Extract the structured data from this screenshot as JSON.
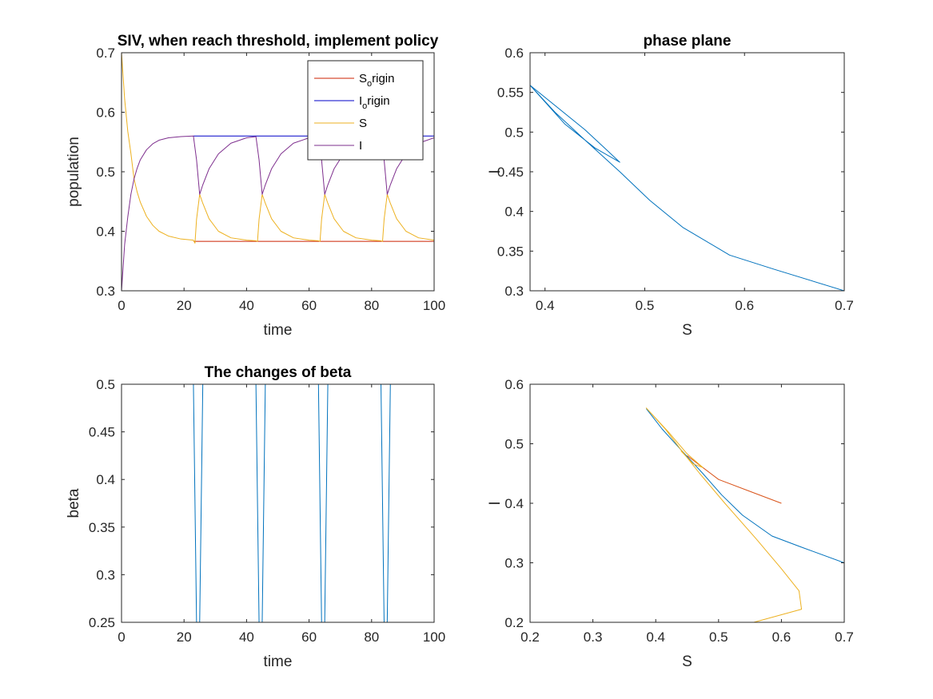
{
  "colors": {
    "red": "#d95319",
    "darkred": "#cc2200",
    "blue": "#0000c8",
    "orange": "#edb120",
    "purple": "#7e2f8e",
    "steel": "#0072bd"
  },
  "chart_data": [
    {
      "id": "siv",
      "type": "line",
      "title": "SIV, when reach threshold, implement policy",
      "xlabel": "time",
      "ylabel": "population",
      "xlim": [
        0,
        100
      ],
      "ylim": [
        0.3,
        0.7
      ],
      "xticks": [
        0,
        20,
        40,
        60,
        80,
        100
      ],
      "yticks": [
        0.3,
        0.4,
        0.5,
        0.6,
        0.7
      ],
      "grid": false,
      "legend": "top-right",
      "series": [
        {
          "key": "s_origin",
          "name": "S",
          "name_sub": "o",
          "name_rest": "rigin",
          "color": "#cc2200",
          "points": [
            [
              23,
              0.383
            ],
            [
              30,
              0.383
            ],
            [
              50,
              0.383
            ],
            [
              70,
              0.383
            ],
            [
              90,
              0.383
            ],
            [
              100,
              0.383
            ]
          ]
        },
        {
          "key": "i_origin",
          "name": "I",
          "name_sub": "o",
          "name_rest": "rigin",
          "color": "#0000c8",
          "points": [
            [
              23,
              0.56
            ],
            [
              100,
              0.56
            ]
          ]
        },
        {
          "key": "s",
          "name": "S",
          "name_sub": "",
          "name_rest": "",
          "color": "#edb120",
          "points": [
            [
              0,
              0.7
            ],
            [
              1,
              0.622
            ],
            [
              2,
              0.568
            ],
            [
              3,
              0.531
            ],
            [
              4,
              0.488
            ],
            [
              5,
              0.466
            ],
            [
              6,
              0.449
            ],
            [
              8,
              0.425
            ],
            [
              10,
              0.41
            ],
            [
              12,
              0.4
            ],
            [
              15,
              0.392
            ],
            [
              19,
              0.387
            ],
            [
              23,
              0.385
            ],
            [
              23.5,
              0.38
            ],
            [
              24,
              0.42
            ],
            [
              25,
              0.462
            ],
            [
              26,
              0.447
            ],
            [
              28,
              0.421
            ],
            [
              31,
              0.4
            ],
            [
              35,
              0.389
            ],
            [
              40,
              0.385
            ],
            [
              43,
              0.384
            ],
            [
              43.5,
              0.383
            ],
            [
              44,
              0.42
            ],
            [
              45,
              0.462
            ],
            [
              46,
              0.447
            ],
            [
              48,
              0.421
            ],
            [
              51,
              0.4
            ],
            [
              55,
              0.389
            ],
            [
              60,
              0.385
            ],
            [
              63,
              0.384
            ],
            [
              63.5,
              0.383
            ],
            [
              64,
              0.42
            ],
            [
              65,
              0.462
            ],
            [
              66,
              0.447
            ],
            [
              68,
              0.421
            ],
            [
              71,
              0.4
            ],
            [
              75,
              0.389
            ],
            [
              80,
              0.385
            ],
            [
              83,
              0.384
            ],
            [
              83.5,
              0.383
            ],
            [
              84,
              0.42
            ],
            [
              85,
              0.462
            ],
            [
              86,
              0.447
            ],
            [
              88,
              0.421
            ],
            [
              91,
              0.4
            ],
            [
              95,
              0.389
            ],
            [
              100,
              0.385
            ]
          ]
        },
        {
          "key": "i",
          "name": "I",
          "name_sub": "",
          "name_rest": "",
          "color": "#7e2f8e",
          "points": [
            [
              0,
              0.3
            ],
            [
              1,
              0.378
            ],
            [
              2,
              0.424
            ],
            [
              3,
              0.462
            ],
            [
              4,
              0.488
            ],
            [
              5,
              0.506
            ],
            [
              6,
              0.52
            ],
            [
              8,
              0.537
            ],
            [
              10,
              0.547
            ],
            [
              12,
              0.553
            ],
            [
              15,
              0.557
            ],
            [
              19,
              0.559
            ],
            [
              23,
              0.56
            ],
            [
              24,
              0.52
            ],
            [
              25,
              0.462
            ],
            [
              26,
              0.478
            ],
            [
              28,
              0.505
            ],
            [
              31,
              0.53
            ],
            [
              35,
              0.548
            ],
            [
              40,
              0.557
            ],
            [
              43,
              0.559
            ],
            [
              44,
              0.52
            ],
            [
              45,
              0.462
            ],
            [
              46,
              0.478
            ],
            [
              48,
              0.505
            ],
            [
              51,
              0.53
            ],
            [
              55,
              0.548
            ],
            [
              60,
              0.557
            ],
            [
              63,
              0.559
            ],
            [
              64,
              0.52
            ],
            [
              65,
              0.462
            ],
            [
              66,
              0.478
            ],
            [
              68,
              0.505
            ],
            [
              71,
              0.53
            ],
            [
              75,
              0.548
            ],
            [
              80,
              0.557
            ],
            [
              83,
              0.559
            ],
            [
              84,
              0.52
            ],
            [
              85,
              0.462
            ],
            [
              86,
              0.478
            ],
            [
              88,
              0.505
            ],
            [
              91,
              0.53
            ],
            [
              95,
              0.548
            ],
            [
              100,
              0.557
            ]
          ]
        }
      ]
    },
    {
      "id": "phase",
      "type": "line",
      "title": "phase plane",
      "xlabel": "S",
      "ylabel": "I",
      "xlim": [
        0.385,
        0.7
      ],
      "ylim": [
        0.3,
        0.6
      ],
      "xticks": [
        0.4,
        0.5,
        0.6,
        0.7
      ],
      "yticks": [
        0.3,
        0.35,
        0.4,
        0.45,
        0.5,
        0.55,
        0.6
      ],
      "grid": false,
      "series": [
        {
          "key": "traj",
          "color": "#0072bd",
          "points": [
            [
              0.7,
              0.3
            ],
            [
              0.63,
              0.327
            ],
            [
              0.585,
              0.345
            ],
            [
              0.538,
              0.38
            ],
            [
              0.505,
              0.414
            ],
            [
              0.475,
              0.45
            ],
            [
              0.44,
              0.49
            ],
            [
              0.41,
              0.525
            ],
            [
              0.385,
              0.559
            ],
            [
              0.44,
              0.503
            ],
            [
              0.475,
              0.462
            ],
            [
              0.45,
              0.48
            ],
            [
              0.42,
              0.51
            ],
            [
              0.385,
              0.559
            ]
          ]
        }
      ]
    },
    {
      "id": "beta",
      "type": "line",
      "title": "The changes of beta",
      "xlabel": "time",
      "ylabel": "beta",
      "xlim": [
        0,
        100
      ],
      "ylim": [
        0.25,
        0.5
      ],
      "xticks": [
        0,
        20,
        40,
        60,
        80,
        100
      ],
      "yticks": [
        0.25,
        0.3,
        0.35,
        0.4,
        0.45,
        0.5
      ],
      "grid": false,
      "series": [
        {
          "key": "beta",
          "color": "#0072bd",
          "points": [
            [
              0,
              0.5
            ],
            [
              23,
              0.5
            ],
            [
              24,
              0.25
            ],
            [
              25,
              0.25
            ],
            [
              26,
              0.5
            ],
            [
              43,
              0.5
            ],
            [
              44,
              0.25
            ],
            [
              45,
              0.25
            ],
            [
              46,
              0.5
            ],
            [
              63,
              0.5
            ],
            [
              64,
              0.25
            ],
            [
              65,
              0.25
            ],
            [
              66,
              0.5
            ],
            [
              83,
              0.5
            ],
            [
              84,
              0.25
            ],
            [
              85,
              0.25
            ],
            [
              86,
              0.5
            ],
            [
              100,
              0.5
            ]
          ]
        }
      ]
    },
    {
      "id": "phase2",
      "type": "line",
      "title": "",
      "xlabel": "S",
      "ylabel": "I",
      "xlim": [
        0.2,
        0.7
      ],
      "ylim": [
        0.2,
        0.6
      ],
      "xticks": [
        0.2,
        0.3,
        0.4,
        0.5,
        0.6,
        0.7
      ],
      "yticks": [
        0.2,
        0.3,
        0.4,
        0.5,
        0.6
      ],
      "grid": false,
      "series": [
        {
          "key": "red",
          "color": "#d95319",
          "points": [
            [
              0.6,
              0.4
            ],
            [
              0.55,
              0.42
            ],
            [
              0.5,
              0.44
            ],
            [
              0.475,
              0.46
            ],
            [
              0.45,
              0.48
            ]
          ]
        },
        {
          "key": "blue",
          "color": "#0072bd",
          "points": [
            [
              0.7,
              0.3
            ],
            [
              0.63,
              0.327
            ],
            [
              0.585,
              0.345
            ],
            [
              0.538,
              0.38
            ],
            [
              0.505,
              0.414
            ],
            [
              0.475,
              0.45
            ],
            [
              0.44,
              0.49
            ],
            [
              0.41,
              0.525
            ],
            [
              0.385,
              0.559
            ]
          ]
        },
        {
          "key": "orange",
          "color": "#edb120",
          "points": [
            [
              0.2,
              0.2
            ],
            [
              0.3,
              0.2
            ],
            [
              0.45,
              0.2
            ],
            [
              0.556,
              0.2
            ],
            [
              0.632,
              0.222
            ],
            [
              0.628,
              0.253
            ],
            [
              0.6,
              0.29
            ],
            [
              0.56,
              0.34
            ],
            [
              0.51,
              0.4
            ],
            [
              0.47,
              0.45
            ],
            [
              0.44,
              0.49
            ],
            [
              0.415,
              0.525
            ],
            [
              0.385,
              0.56
            ],
            [
              0.42,
              0.52
            ],
            [
              0.45,
              0.483
            ],
            [
              0.475,
              0.46
            ],
            [
              0.46,
              0.466
            ],
            [
              0.44,
              0.488
            ]
          ]
        }
      ]
    }
  ]
}
